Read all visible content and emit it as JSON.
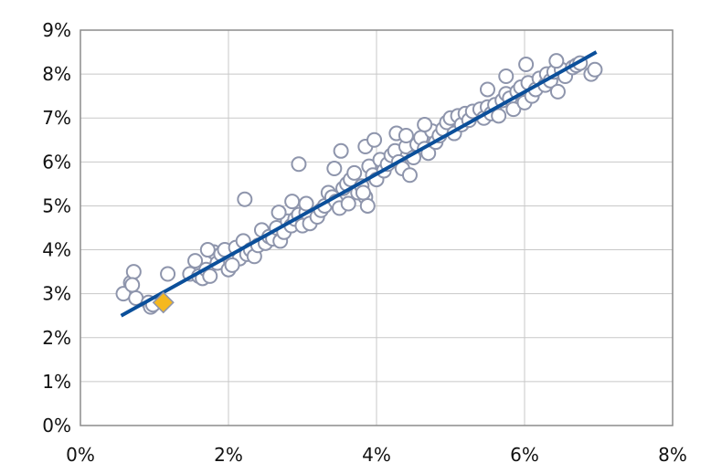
{
  "chart_data": {
    "type": "scatter",
    "title": "",
    "xlabel": "",
    "ylabel": "",
    "xlim": [
      0,
      8
    ],
    "ylim": [
      0,
      9
    ],
    "x_ticks": [
      0,
      2,
      4,
      6,
      8
    ],
    "y_ticks": [
      0,
      1,
      2,
      3,
      4,
      5,
      6,
      7,
      8,
      9
    ],
    "x_tick_labels": [
      "0%",
      "2%",
      "4%",
      "6%",
      "8%"
    ],
    "y_tick_labels": [
      "0%",
      "1%",
      "2%",
      "3%",
      "4%",
      "5%",
      "6%",
      "7%",
      "8%",
      "9%"
    ],
    "grid": "on",
    "legend": "none",
    "colors": {
      "marker_fill": "#ffffff",
      "marker_stroke": "#8e95ac",
      "trend_line": "#0b4f9a",
      "highlight_fill": "#f5b820",
      "highlight_stroke": "#8e95ac",
      "grid": "#c8c8c8",
      "frame": "#8c8c8c"
    },
    "series": [
      {
        "kind": "scatter",
        "marker": "circle",
        "x": [
          0.58,
          0.68,
          0.72,
          0.7,
          0.75,
          0.92,
          0.95,
          0.98,
          1.18,
          1.48,
          1.55,
          1.6,
          1.65,
          1.7,
          1.75,
          1.8,
          1.85,
          1.9,
          1.95,
          2.0,
          2.1,
          2.15,
          2.2,
          2.25,
          2.3,
          2.35,
          2.4,
          2.45,
          2.5,
          2.55,
          2.6,
          2.65,
          2.7,
          2.75,
          2.8,
          2.85,
          2.9,
          2.95,
          3.0,
          3.05,
          3.1,
          3.2,
          3.25,
          3.3,
          3.35,
          3.4,
          3.45,
          3.5,
          3.55,
          3.6,
          3.62,
          3.65,
          3.7,
          3.75,
          3.8,
          3.85,
          3.88,
          3.9,
          3.95,
          4.0,
          4.05,
          4.1,
          4.15,
          4.2,
          4.25,
          4.3,
          4.35,
          4.4,
          4.45,
          4.5,
          4.55,
          4.6,
          4.65,
          4.7,
          4.75,
          4.8,
          4.85,
          4.9,
          4.95,
          5.0,
          5.05,
          5.1,
          5.15,
          5.2,
          5.25,
          5.3,
          5.4,
          5.45,
          5.5,
          5.55,
          5.6,
          5.65,
          5.7,
          5.75,
          5.8,
          5.85,
          5.9,
          5.95,
          6.0,
          6.05,
          6.1,
          6.15,
          6.2,
          6.28,
          6.3,
          6.35,
          6.4,
          6.45,
          6.5,
          6.55,
          6.65,
          6.7,
          6.75,
          6.9,
          6.95,
          2.22,
          2.95,
          3.52,
          3.85,
          3.43,
          3.97,
          4.27,
          4.4,
          4.65,
          5.5,
          5.75,
          6.02,
          6.43,
          2.68,
          2.86,
          3.05,
          3.82,
          1.72,
          2.05
        ],
        "y": [
          3.0,
          3.25,
          3.5,
          3.2,
          2.9,
          2.8,
          2.7,
          2.75,
          3.45,
          3.45,
          3.75,
          3.4,
          3.35,
          3.55,
          3.4,
          3.95,
          3.7,
          3.9,
          4.0,
          3.55,
          4.05,
          3.8,
          4.2,
          3.9,
          4.0,
          3.85,
          4.1,
          4.45,
          4.15,
          4.3,
          4.25,
          4.5,
          4.2,
          4.4,
          4.65,
          4.55,
          4.7,
          4.8,
          4.55,
          4.85,
          4.6,
          4.75,
          4.9,
          5.0,
          5.3,
          5.2,
          5.1,
          4.95,
          5.4,
          5.5,
          5.05,
          5.6,
          5.75,
          5.3,
          5.45,
          5.2,
          5.0,
          5.9,
          5.7,
          5.6,
          6.05,
          5.8,
          5.95,
          6.15,
          6.25,
          6.0,
          5.85,
          6.35,
          5.7,
          6.1,
          6.4,
          6.55,
          6.3,
          6.2,
          6.7,
          6.45,
          6.6,
          6.75,
          6.9,
          7.0,
          6.65,
          7.05,
          6.85,
          7.1,
          6.95,
          7.15,
          7.2,
          7.0,
          7.25,
          7.1,
          7.3,
          7.05,
          7.4,
          7.55,
          7.45,
          7.2,
          7.6,
          7.7,
          7.35,
          7.8,
          7.5,
          7.65,
          7.9,
          7.75,
          8.0,
          7.85,
          8.05,
          7.6,
          8.1,
          7.95,
          8.15,
          8.2,
          8.25,
          8.0,
          8.1,
          5.15,
          5.95,
          6.25,
          6.35,
          5.85,
          6.5,
          6.65,
          6.6,
          6.85,
          7.65,
          7.95,
          8.22,
          8.3,
          4.85,
          5.1,
          5.05,
          5.3,
          4.0,
          3.65
        ]
      },
      {
        "kind": "line",
        "x": [
          0.55,
          6.97
        ],
        "y": [
          2.5,
          8.5
        ]
      },
      {
        "kind": "highlight",
        "marker": "diamond",
        "x": [
          1.12
        ],
        "y": [
          2.8
        ]
      }
    ]
  }
}
